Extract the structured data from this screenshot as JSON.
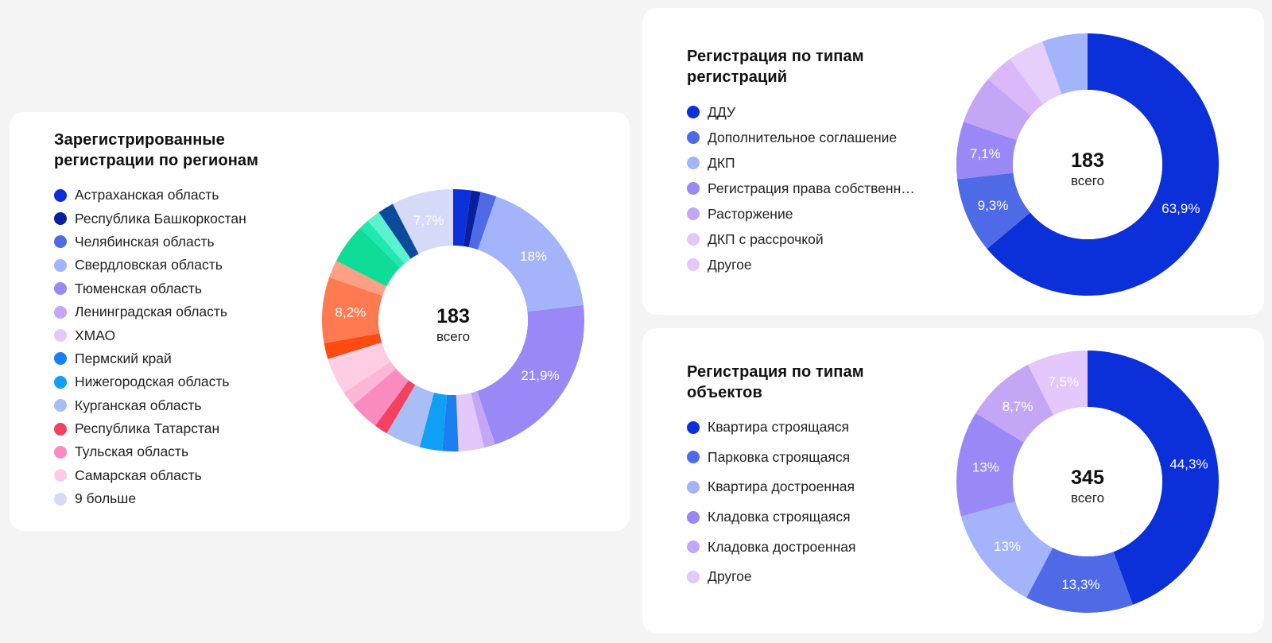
{
  "regions": {
    "title": "Зарегистрированные регистрации по регионам",
    "legend": [
      {
        "label": "Астраханская область",
        "color": "#0b2fd9"
      },
      {
        "label": "Республика Башкоркостан",
        "color": "#0a1f9c"
      },
      {
        "label": "Челябинская область",
        "color": "#4f6ae6"
      },
      {
        "label": "Свердловская область",
        "color": "#a3b4fb"
      },
      {
        "label": "Тюменская область",
        "color": "#9988f6"
      },
      {
        "label": "Ленинградская область",
        "color": "#c4a6f7"
      },
      {
        "label": "ХМАО",
        "color": "#e4c7fb"
      },
      {
        "label": "Пермский край",
        "color": "#1a7ff0"
      },
      {
        "label": "Нижегородская область",
        "color": "#0fa0f5"
      },
      {
        "label": "Курганская область",
        "color": "#a9bef5"
      },
      {
        "label": "Республика Татарстан",
        "color": "#f2425f"
      },
      {
        "label": "Тульская область",
        "color": "#f98bbf"
      },
      {
        "label": "Самарская область",
        "color": "#ffcde3"
      },
      {
        "label": "9 больше",
        "color": "#d4daf8"
      }
    ],
    "total": "183",
    "total_caption": "всего"
  },
  "types": {
    "title": "Регистрация по типам регистраций",
    "legend": [
      {
        "label": "ДДУ",
        "color": "#0b2fd9"
      },
      {
        "label": "Дополнительное соглашение",
        "color": "#4f6ae6"
      },
      {
        "label": "ДКП",
        "color": "#a3b4fb"
      },
      {
        "label": "Регистрация права собственн…",
        "color": "#9988f6"
      },
      {
        "label": "Расторжение",
        "color": "#c4a6f7"
      },
      {
        "label": "ДКП с рассрочкой",
        "color": "#e4c7fb"
      },
      {
        "label": "Другое",
        "color": "#e4c7fb"
      }
    ],
    "total": "183",
    "total_caption": "всего"
  },
  "objects": {
    "title": "Регистрация по типам объектов",
    "legend": [
      {
        "label": "Квартира строящаяся",
        "color": "#0b2fd9"
      },
      {
        "label": "Парковка строящаяся",
        "color": "#4f6ae6"
      },
      {
        "label": "Квартира достроенная",
        "color": "#a3b4fb"
      },
      {
        "label": "Кладовка строящаяся",
        "color": "#9988f6"
      },
      {
        "label": "Кладовка достроенная",
        "color": "#c4a6f7"
      },
      {
        "label": "Другое",
        "color": "#e4c7fb"
      }
    ],
    "total": "345",
    "total_caption": "всего"
  },
  "chart_data": [
    {
      "type": "pie",
      "variant": "donut",
      "title": "Зарегистрированные регистрации по регионам",
      "slices": [
        {
          "value": 2.2,
          "color": "#0b2fd9"
        },
        {
          "value": 1.2,
          "color": "#0a1f9c"
        },
        {
          "value": 2.0,
          "color": "#4f6ae6"
        },
        {
          "value": 18.0,
          "color": "#a3b4fb",
          "label": "18%"
        },
        {
          "value": 21.9,
          "color": "#9988f6",
          "label": "21,9%"
        },
        {
          "value": 1.4,
          "color": "#c4a6f7"
        },
        {
          "value": 3.2,
          "color": "#e4c7fb"
        },
        {
          "value": 2.0,
          "color": "#1a7ff0"
        },
        {
          "value": 2.8,
          "color": "#0fa0f5"
        },
        {
          "value": 4.4,
          "color": "#a9bef5"
        },
        {
          "value": 1.7,
          "color": "#f2425f"
        },
        {
          "value": 3.7,
          "color": "#f98bbf"
        },
        {
          "value": 1.9,
          "color": "#fcb6d6"
        },
        {
          "value": 4.6,
          "color": "#ffcde3"
        },
        {
          "value": 2.0,
          "color": "#ff4a12"
        },
        {
          "value": 8.2,
          "color": "#ff7a50",
          "label": "8,2%"
        },
        {
          "value": 2.2,
          "color": "#ff9f85"
        },
        {
          "value": 5.0,
          "color": "#0fdc97"
        },
        {
          "value": 1.3,
          "color": "#20e8b0"
        },
        {
          "value": 1.7,
          "color": "#5cf2cf"
        },
        {
          "value": 2.0,
          "color": "#0c4b9c"
        },
        {
          "value": 7.7,
          "color": "#d4daf8",
          "label": "7,7%"
        }
      ],
      "total": "183"
    },
    {
      "type": "pie",
      "variant": "donut",
      "title": "Регистрация по типам регистраций",
      "slices": [
        {
          "value": 63.9,
          "color": "#0b2fd9",
          "label": "63,9%"
        },
        {
          "value": 9.3,
          "color": "#4f6ae6",
          "label": "9,3%"
        },
        {
          "value": 7.1,
          "color": "#9988f6",
          "label": "7,1%"
        },
        {
          "value": 6.0,
          "color": "#c4a6f7"
        },
        {
          "value": 3.6,
          "color": "#dbb8fa"
        },
        {
          "value": 4.5,
          "color": "#e6cffb"
        },
        {
          "value": 5.6,
          "color": "#a3b4fb"
        }
      ],
      "total": "183"
    },
    {
      "type": "pie",
      "variant": "donut",
      "title": "Регистрация по типам объектов",
      "slices": [
        {
          "value": 44.3,
          "color": "#0b2fd9",
          "label": "44,3%"
        },
        {
          "value": 13.3,
          "color": "#4f6ae6",
          "label": "13,3%"
        },
        {
          "value": 13.0,
          "color": "#a3b4fb",
          "label": "13%"
        },
        {
          "value": 13.0,
          "color": "#9988f6",
          "label": "13%"
        },
        {
          "value": 8.7,
          "color": "#c4a6f7",
          "label": "8,7%"
        },
        {
          "value": 7.5,
          "color": "#e4c7fb",
          "label": "7,5%"
        }
      ],
      "total": "345"
    }
  ]
}
